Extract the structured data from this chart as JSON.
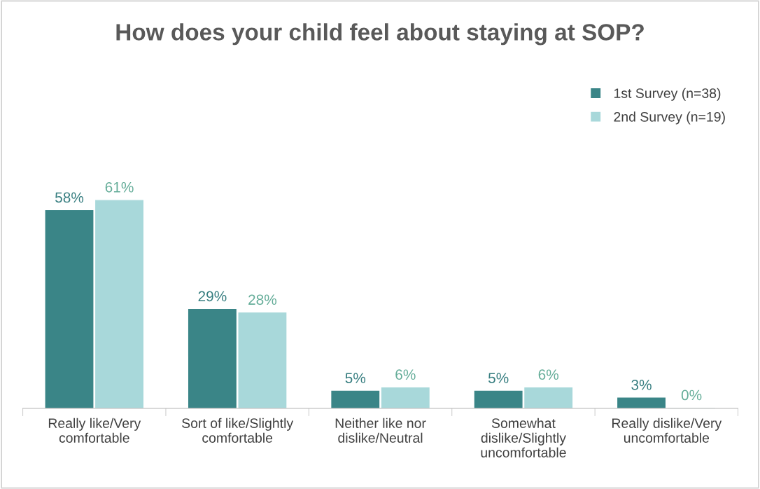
{
  "chart_data": {
    "type": "bar",
    "title": "How does your child feel about staying at SOP?",
    "categories": [
      "Really like/Very\ncomfortable",
      "Sort of like/Slightly\ncomfortable",
      "Neither like nor\ndislike/Neutral",
      "Somewhat\ndislike/Slightly\nuncomfortable",
      "Really dislike/Very\nuncomfortable"
    ],
    "series": [
      {
        "name": "1st Survey (n=38)",
        "color": "#3a8587",
        "values": [
          58,
          29,
          5,
          5,
          3
        ],
        "value_labels": [
          "58%",
          "29%",
          "5%",
          "5%",
          "3%"
        ]
      },
      {
        "name": "2nd Survey (n=19)",
        "color": "#a8d8da",
        "values": [
          61,
          28,
          6,
          6,
          0
        ],
        "value_labels": [
          "61%",
          "28%",
          "6%",
          "6%",
          "0%"
        ]
      }
    ],
    "legend": "top right",
    "grid": false
  }
}
